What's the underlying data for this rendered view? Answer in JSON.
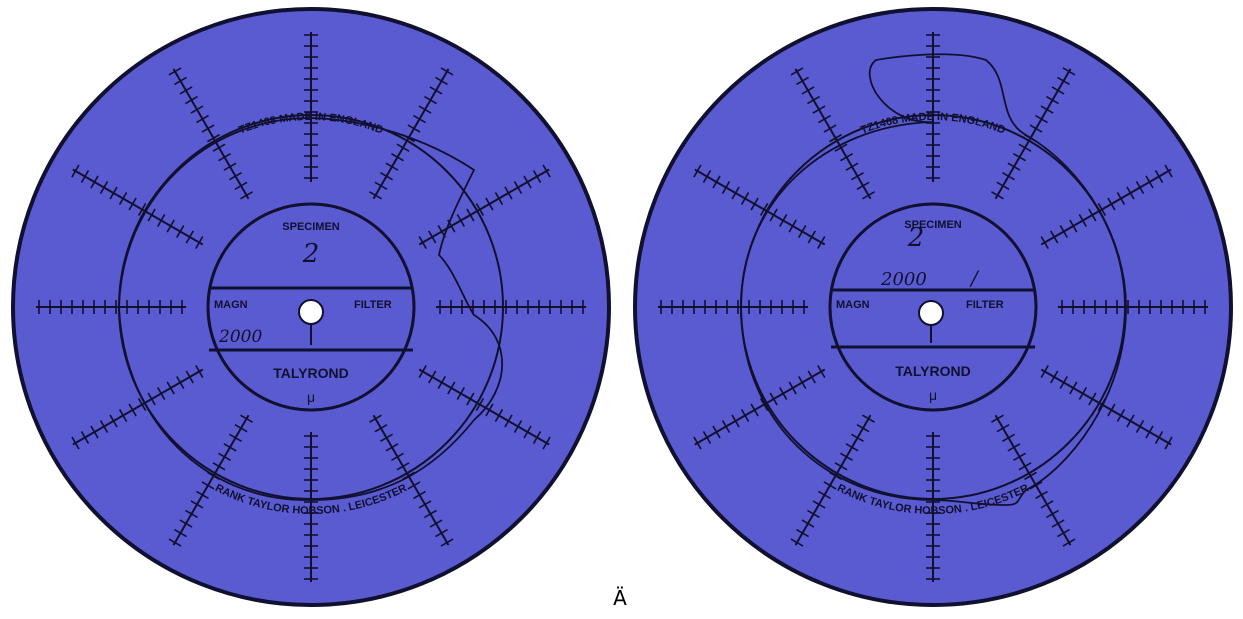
{
  "colors": {
    "disc_fill": "#5a5bd0",
    "ink": "#101030",
    "paper": "#ffffff"
  },
  "charts": [
    {
      "id": "left",
      "top_label": "TZ1468 MADE IN ENGLAND",
      "bottom_label": "RANK TAYLOR HOBSON . LEICESTER",
      "specimen_label": "SPECIMEN",
      "specimen_value": "2",
      "magn_label": "MAGN",
      "magn_value": "2000",
      "filter_label": "FILTER",
      "filter_value": "",
      "brand": "TALYROND",
      "unit": "μ"
    },
    {
      "id": "right",
      "top_label": "TZ1468 MADE IN ENGLAND",
      "bottom_label": "RANK TAYLOR HOBSON . LEICESTER",
      "specimen_label": "SPECIMEN",
      "specimen_value": "2",
      "magn_label": "MAGN",
      "magn_value": "2000",
      "filter_label": "FILTER",
      "filter_value": "/",
      "brand": "TALYROND",
      "unit": "μ"
    }
  ],
  "bottom_mark": "Ä"
}
